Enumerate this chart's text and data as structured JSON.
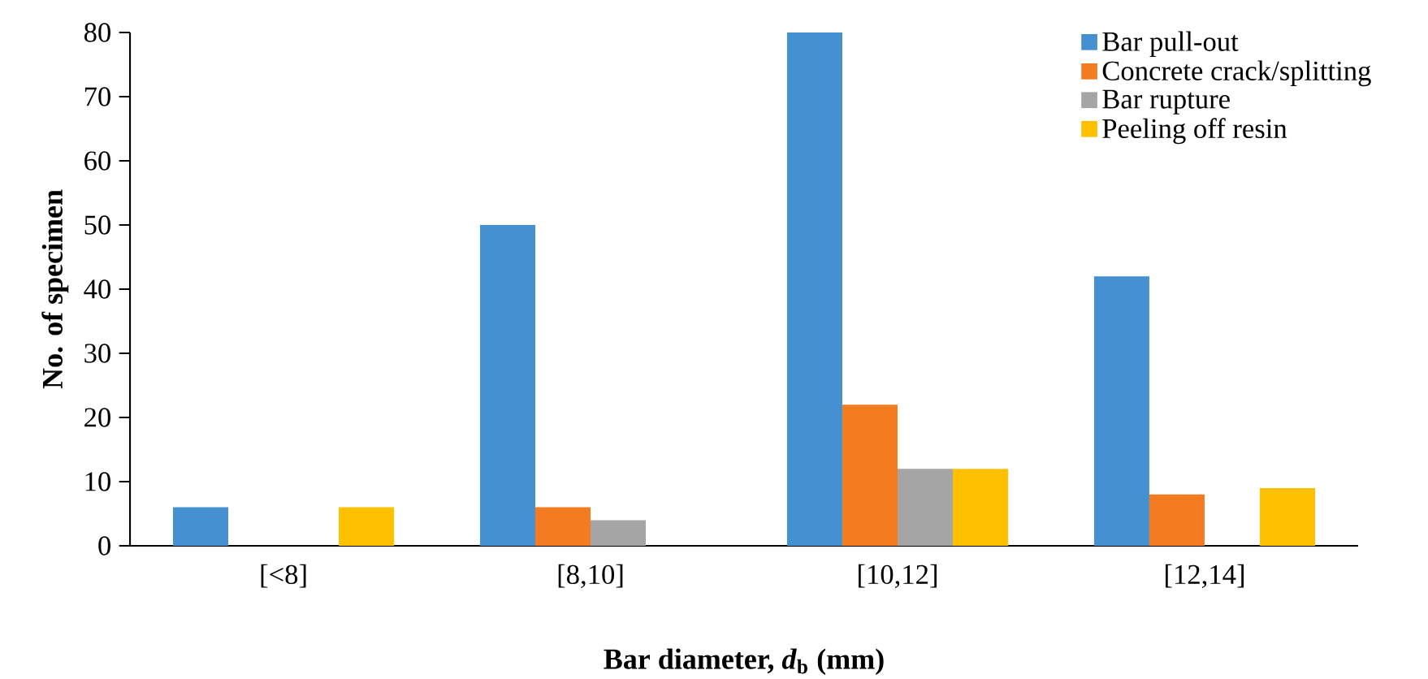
{
  "chart_data": {
    "type": "bar",
    "xlabel": "Bar diameter, *d*$_{b}$ (mm)",
    "ylabel": "No. of specimen",
    "categories": [
      "[<8]",
      "[8,10]",
      "[10,12]",
      "[12,14]"
    ],
    "series": [
      {
        "name": "Bar pull-out",
        "color": "#4590d0",
        "values": [
          6,
          50,
          80,
          42
        ]
      },
      {
        "name": "Concrete crack/splitting",
        "color": "#f47c20",
        "values": [
          0,
          6,
          22,
          8
        ]
      },
      {
        "name": "Bar rupture",
        "color": "#a5a5a5",
        "values": [
          0,
          4,
          12,
          0
        ]
      },
      {
        "name": "Peeling off resin",
        "color": "#ffc000",
        "values": [
          6,
          0,
          12,
          9
        ]
      }
    ],
    "ylim": [
      0,
      80
    ],
    "yticks": [
      0,
      10,
      20,
      30,
      40,
      50,
      60,
      70,
      80
    ],
    "grid": false,
    "legend": "top right"
  }
}
